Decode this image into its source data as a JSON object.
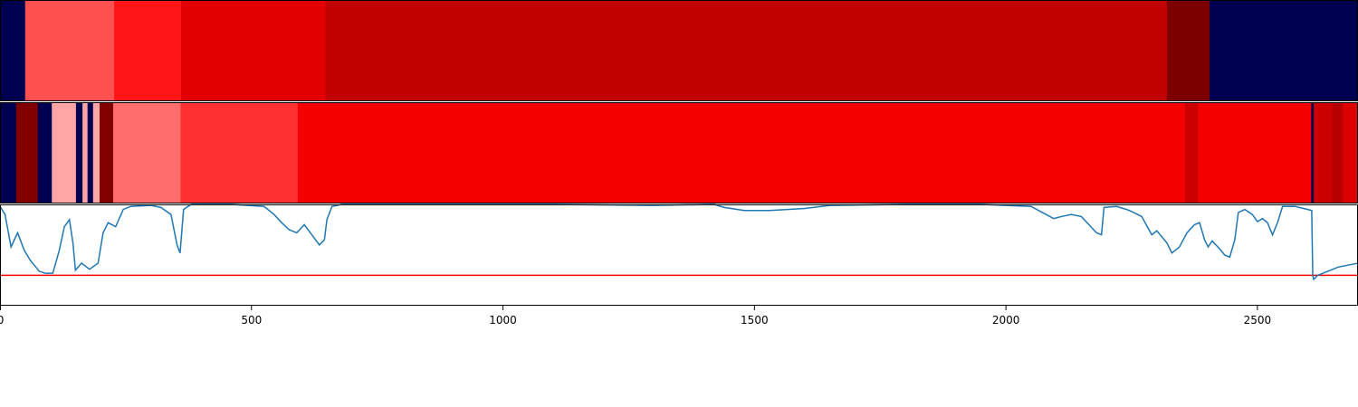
{
  "chart_data": {
    "type": "heatmap",
    "x_range": [
      0,
      2700
    ],
    "x_ticks": [
      0,
      500,
      1000,
      1500,
      2000,
      2500
    ],
    "x_tick_labels": [
      "0",
      "500",
      "1000",
      "1500",
      "2000",
      "2500"
    ],
    "grid": false,
    "bands": [
      {
        "segments": [
          {
            "x0": 0,
            "x1": 50,
            "color": "#000050"
          },
          {
            "x0": 50,
            "x1": 227,
            "color": "#ff5050"
          },
          {
            "x0": 227,
            "x1": 360,
            "color": "#ff1515"
          },
          {
            "x0": 360,
            "x1": 647,
            "color": "#e30000"
          },
          {
            "x0": 647,
            "x1": 2320,
            "color": "#c10000"
          },
          {
            "x0": 2320,
            "x1": 2405,
            "color": "#7c0000"
          },
          {
            "x0": 2405,
            "x1": 2700,
            "color": "#000050"
          }
        ]
      },
      {
        "segments": [
          {
            "x0": 0,
            "x1": 32,
            "color": "#000050"
          },
          {
            "x0": 32,
            "x1": 75,
            "color": "#800000"
          },
          {
            "x0": 75,
            "x1": 103,
            "color": "#000050"
          },
          {
            "x0": 103,
            "x1": 151,
            "color": "#ffa5a5"
          },
          {
            "x0": 151,
            "x1": 164,
            "color": "#000050"
          },
          {
            "x0": 164,
            "x1": 174,
            "color": "#ffa5a5"
          },
          {
            "x0": 174,
            "x1": 185,
            "color": "#000050"
          },
          {
            "x0": 185,
            "x1": 198,
            "color": "#ffa5a5"
          },
          {
            "x0": 198,
            "x1": 225,
            "color": "#800000"
          },
          {
            "x0": 225,
            "x1": 359,
            "color": "#ff6d6d"
          },
          {
            "x0": 359,
            "x1": 592,
            "color": "#ff3030"
          },
          {
            "x0": 592,
            "x1": 2356,
            "color": "#f50000"
          },
          {
            "x0": 2356,
            "x1": 2382,
            "color": "#cc0000"
          },
          {
            "x0": 2382,
            "x1": 2607,
            "color": "#f50000"
          },
          {
            "x0": 2607,
            "x1": 2612,
            "color": "#000050"
          },
          {
            "x0": 2612,
            "x1": 2648,
            "color": "#cc0000"
          },
          {
            "x0": 2648,
            "x1": 2670,
            "color": "#b80000"
          },
          {
            "x0": 2670,
            "x1": 2700,
            "color": "#dd0000"
          }
        ]
      }
    ],
    "line_panel": {
      "y_range": [
        0,
        1
      ],
      "threshold": {
        "y": 0.3,
        "color": "#ff0000"
      },
      "series": [
        {
          "color": "#1f77b4",
          "points": [
            [
              0,
              0.98
            ],
            [
              10,
              0.9
            ],
            [
              22,
              0.58
            ],
            [
              35,
              0.72
            ],
            [
              48,
              0.55
            ],
            [
              60,
              0.45
            ],
            [
              78,
              0.34
            ],
            [
              90,
              0.32
            ],
            [
              105,
              0.32
            ],
            [
              118,
              0.55
            ],
            [
              128,
              0.78
            ],
            [
              138,
              0.85
            ],
            [
              145,
              0.62
            ],
            [
              150,
              0.35
            ],
            [
              162,
              0.42
            ],
            [
              178,
              0.36
            ],
            [
              195,
              0.42
            ],
            [
              205,
              0.72
            ],
            [
              215,
              0.82
            ],
            [
              230,
              0.78
            ],
            [
              245,
              0.95
            ],
            [
              260,
              0.98
            ],
            [
              300,
              0.99
            ],
            [
              320,
              0.97
            ],
            [
              340,
              0.9
            ],
            [
              352,
              0.6
            ],
            [
              358,
              0.52
            ],
            [
              365,
              0.95
            ],
            [
              380,
              1.0
            ],
            [
              460,
              1.0
            ],
            [
              525,
              0.98
            ],
            [
              545,
              0.9
            ],
            [
              560,
              0.82
            ],
            [
              575,
              0.75
            ],
            [
              590,
              0.72
            ],
            [
              605,
              0.8
            ],
            [
              620,
              0.7
            ],
            [
              635,
              0.6
            ],
            [
              645,
              0.65
            ],
            [
              650,
              0.85
            ],
            [
              660,
              0.98
            ],
            [
              680,
              1.0
            ],
            [
              1100,
              1.0
            ],
            [
              1300,
              0.99
            ],
            [
              1420,
              1.0
            ],
            [
              1440,
              0.97
            ],
            [
              1480,
              0.94
            ],
            [
              1530,
              0.94
            ],
            [
              1600,
              0.96
            ],
            [
              1650,
              0.99
            ],
            [
              1800,
              1.0
            ],
            [
              1950,
              1.0
            ],
            [
              2000,
              0.99
            ],
            [
              2050,
              0.98
            ],
            [
              2080,
              0.9
            ],
            [
              2095,
              0.86
            ],
            [
              2110,
              0.88
            ],
            [
              2130,
              0.9
            ],
            [
              2150,
              0.88
            ],
            [
              2165,
              0.8
            ],
            [
              2180,
              0.72
            ],
            [
              2190,
              0.7
            ],
            [
              2195,
              0.97
            ],
            [
              2220,
              0.98
            ],
            [
              2240,
              0.95
            ],
            [
              2250,
              0.93
            ],
            [
              2270,
              0.88
            ],
            [
              2290,
              0.7
            ],
            [
              2300,
              0.74
            ],
            [
              2320,
              0.62
            ],
            [
              2330,
              0.52
            ],
            [
              2345,
              0.58
            ],
            [
              2360,
              0.72
            ],
            [
              2375,
              0.8
            ],
            [
              2385,
              0.82
            ],
            [
              2395,
              0.65
            ],
            [
              2402,
              0.58
            ],
            [
              2410,
              0.64
            ],
            [
              2425,
              0.56
            ],
            [
              2435,
              0.5
            ],
            [
              2445,
              0.48
            ],
            [
              2455,
              0.65
            ],
            [
              2462,
              0.92
            ],
            [
              2475,
              0.95
            ],
            [
              2490,
              0.9
            ],
            [
              2500,
              0.83
            ],
            [
              2510,
              0.86
            ],
            [
              2520,
              0.82
            ],
            [
              2530,
              0.7
            ],
            [
              2540,
              0.82
            ],
            [
              2550,
              0.98
            ],
            [
              2575,
              0.98
            ],
            [
              2600,
              0.95
            ],
            [
              2608,
              0.94
            ],
            [
              2610,
              0.3
            ],
            [
              2612,
              0.26
            ],
            [
              2620,
              0.3
            ],
            [
              2640,
              0.34
            ],
            [
              2660,
              0.38
            ],
            [
              2680,
              0.4
            ],
            [
              2700,
              0.42
            ]
          ]
        }
      ]
    }
  }
}
